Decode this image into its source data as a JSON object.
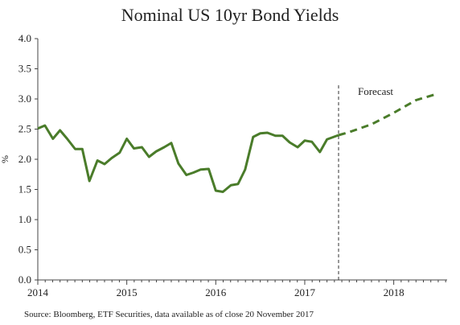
{
  "chart_data": {
    "type": "line",
    "title": "Nominal US 10yr Bond Yields",
    "source": "Source: Bloomberg, ETF Securities, data available as of close 20 November 2017",
    "ylabel": "%",
    "ylim": [
      0,
      4
    ],
    "yticks": [
      "0.0",
      "0.5",
      "1.0",
      "1.5",
      "2.0",
      "2.5",
      "3.0",
      "3.5",
      "4.0"
    ],
    "xlim": [
      2014,
      2018.6
    ],
    "xticks": [
      "2014",
      "2015",
      "2016",
      "2017",
      "2018"
    ],
    "grid": false,
    "forecast_start": 2017.38,
    "forecast_label": "Forecast",
    "colors": {
      "series": "#4a7c2a",
      "axis": "#444444",
      "divider": "#333333"
    },
    "series": [
      {
        "style": "solid",
        "x": [
          2014.0,
          2014.08,
          2014.17,
          2014.25,
          2014.33,
          2014.42,
          2014.5,
          2014.58,
          2014.67,
          2014.75,
          2014.83,
          2014.92,
          2015.0,
          2015.08,
          2015.17,
          2015.25,
          2015.33,
          2015.42,
          2015.5,
          2015.58,
          2015.67,
          2015.75,
          2015.83,
          2015.92,
          2016.0,
          2016.08,
          2016.17,
          2016.25,
          2016.33,
          2016.42,
          2016.5,
          2016.58,
          2016.67,
          2016.75,
          2016.83,
          2016.92,
          2017.0,
          2017.08,
          2017.17,
          2017.25,
          2017.38
        ],
        "values": [
          2.51,
          2.56,
          2.34,
          2.48,
          2.34,
          2.17,
          2.17,
          1.64,
          1.98,
          1.92,
          2.02,
          2.11,
          2.34,
          2.18,
          2.2,
          2.04,
          2.13,
          2.2,
          2.27,
          1.93,
          1.74,
          1.78,
          1.83,
          1.84,
          1.48,
          1.46,
          1.57,
          1.59,
          1.83,
          2.37,
          2.43,
          2.44,
          2.39,
          2.39,
          2.28,
          2.2,
          2.31,
          2.29,
          2.12,
          2.33,
          2.4
        ]
      },
      {
        "style": "dashed",
        "x": [
          2017.38,
          2017.5,
          2017.75,
          2018.0,
          2018.25,
          2018.5
        ],
        "values": [
          2.4,
          2.45,
          2.58,
          2.77,
          2.98,
          3.09
        ]
      }
    ]
  }
}
